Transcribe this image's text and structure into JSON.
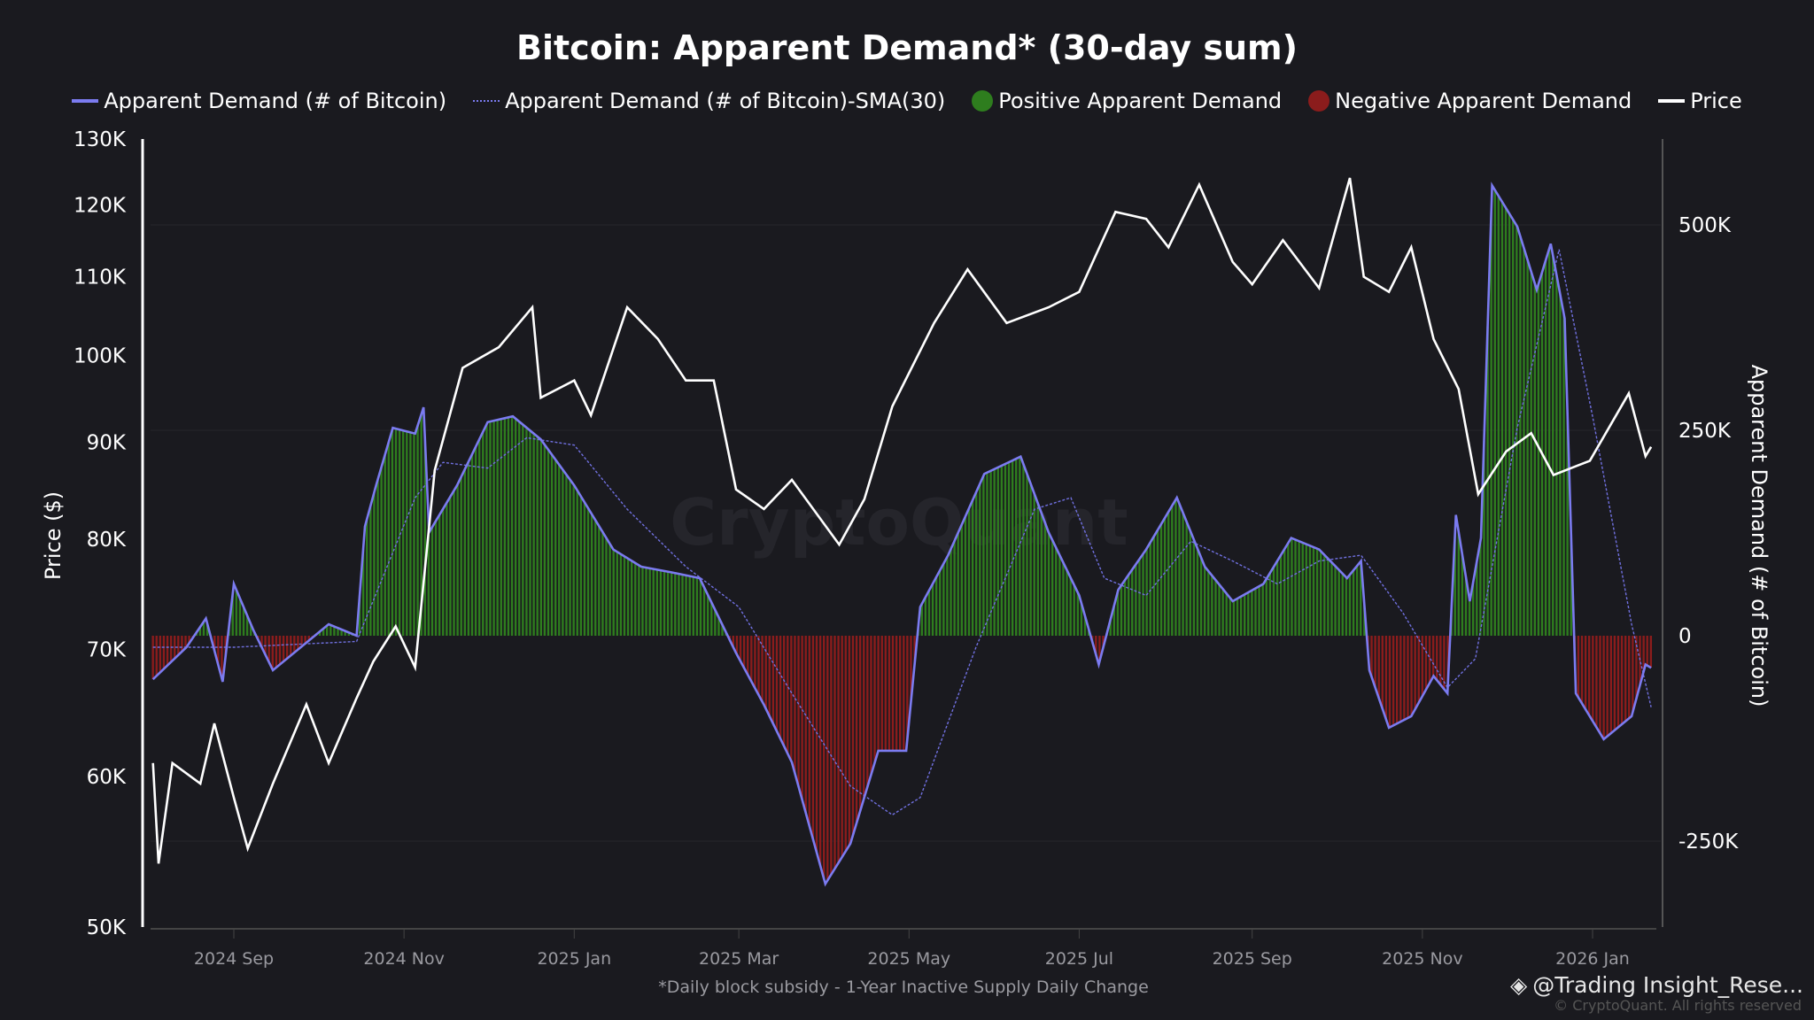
{
  "chart_data": {
    "type": "line",
    "title": "Bitcoin: Apparent Demand* (30-day sum)",
    "footnote": "*Daily block subsidy - 1-Year Inactive Supply Daily Change",
    "watermark": "CryptoQuant",
    "credit": "© CryptoQuant. All rights reserved",
    "handle": "@Trading Insight_Rese...",
    "legend": [
      "Apparent Demand (# of Bitcoin)",
      "Apparent Demand (# of Bitcoin)-SMA(30)",
      "Positive Apparent Demand",
      "Negative Apparent Demand",
      "Price"
    ],
    "legend_placement": "top-center",
    "colors": {
      "demand": "#7b7bf0",
      "sma": "#7070e0",
      "positive": "#2e7d1e",
      "negative": "#8b1c1c",
      "price": "#ffffff",
      "background": "#1a1a1f"
    },
    "ylabel_left": "Price ($)",
    "ylabel_right": "Apparent Demand (# of Bitcoin)",
    "y_left_scale": "log",
    "y_left_range": [
      50000,
      130000
    ],
    "y_left_ticks": [
      "130K",
      "120K",
      "110K",
      "100K",
      "90K",
      "80K",
      "70K",
      "60K",
      "50K"
    ],
    "y_left_tick_values": [
      130000,
      120000,
      110000,
      100000,
      90000,
      80000,
      70000,
      60000,
      50000
    ],
    "y_right_range": [
      -353000,
      605000
    ],
    "y_right_ticks": [
      "500K",
      "250K",
      "0",
      "-250K"
    ],
    "y_right_tick_values": [
      500000,
      250000,
      0,
      -250000
    ],
    "x_range": [
      "2024-08-03",
      "2026-01-22"
    ],
    "x_ticks": [
      "2024 Sep",
      "2024 Nov",
      "2025 Jan",
      "2025 Mar",
      "2025 May",
      "2025 Jul",
      "2025 Sep",
      "2025 Nov",
      "2026 Jan"
    ],
    "x_tick_dates": [
      "2024-09-01",
      "2024-11-01",
      "2025-01-01",
      "2025-03-01",
      "2025-05-01",
      "2025-07-01",
      "2025-09-01",
      "2025-11-01",
      "2026-01-01"
    ],
    "price": [
      [
        "2024-08-03",
        61000
      ],
      [
        "2024-08-05",
        54000
      ],
      [
        "2024-08-10",
        61000
      ],
      [
        "2024-08-20",
        59500
      ],
      [
        "2024-08-25",
        64000
      ],
      [
        "2024-09-01",
        58500
      ],
      [
        "2024-09-06",
        55000
      ],
      [
        "2024-09-15",
        59500
      ],
      [
        "2024-09-27",
        65500
      ],
      [
        "2024-10-05",
        61000
      ],
      [
        "2024-10-15",
        66000
      ],
      [
        "2024-10-21",
        69000
      ],
      [
        "2024-10-29",
        72000
      ],
      [
        "2024-11-05",
        68500
      ],
      [
        "2024-11-12",
        87000
      ],
      [
        "2024-11-22",
        98500
      ],
      [
        "2024-12-05",
        101000
      ],
      [
        "2024-12-17",
        106000
      ],
      [
        "2024-12-20",
        95000
      ],
      [
        "2025-01-01",
        97000
      ],
      [
        "2025-01-07",
        93000
      ],
      [
        "2025-01-20",
        106000
      ],
      [
        "2025-01-31",
        102000
      ],
      [
        "2025-02-10",
        97000
      ],
      [
        "2025-02-20",
        97000
      ],
      [
        "2025-02-28",
        85000
      ],
      [
        "2025-03-10",
        83000
      ],
      [
        "2025-03-20",
        86000
      ],
      [
        "2025-04-06",
        79500
      ],
      [
        "2025-04-15",
        84000
      ],
      [
        "2025-04-25",
        94000
      ],
      [
        "2025-05-10",
        104000
      ],
      [
        "2025-05-22",
        111000
      ],
      [
        "2025-06-05",
        104000
      ],
      [
        "2025-06-20",
        106000
      ],
      [
        "2025-07-01",
        108000
      ],
      [
        "2025-07-14",
        119000
      ],
      [
        "2025-07-25",
        118000
      ],
      [
        "2025-08-02",
        114000
      ],
      [
        "2025-08-13",
        123000
      ],
      [
        "2025-08-25",
        112000
      ],
      [
        "2025-09-01",
        109000
      ],
      [
        "2025-09-12",
        115000
      ],
      [
        "2025-09-25",
        108500
      ],
      [
        "2025-10-06",
        124000
      ],
      [
        "2025-10-11",
        110000
      ],
      [
        "2025-10-20",
        108000
      ],
      [
        "2025-10-28",
        114000
      ],
      [
        "2025-11-05",
        102000
      ],
      [
        "2025-11-14",
        96000
      ],
      [
        "2025-11-21",
        84500
      ],
      [
        "2025-12-01",
        89000
      ],
      [
        "2025-12-10",
        91000
      ],
      [
        "2025-12-18",
        86500
      ],
      [
        "2025-12-31",
        88000
      ],
      [
        "2026-01-14",
        95500
      ],
      [
        "2026-01-20",
        88500
      ],
      [
        "2026-01-22",
        89500
      ]
    ],
    "demand": [
      [
        "2024-08-03",
        -53000
      ],
      [
        "2024-08-15",
        -14000
      ],
      [
        "2024-08-22",
        21000
      ],
      [
        "2024-08-28",
        -56000
      ],
      [
        "2024-09-01",
        63000
      ],
      [
        "2024-09-08",
        7000
      ],
      [
        "2024-09-15",
        -42000
      ],
      [
        "2024-09-25",
        -14000
      ],
      [
        "2024-10-05",
        14000
      ],
      [
        "2024-10-15",
        0
      ],
      [
        "2024-10-18",
        133000
      ],
      [
        "2024-10-22",
        183000
      ],
      [
        "2024-10-28",
        253000
      ],
      [
        "2024-11-05",
        246000
      ],
      [
        "2024-11-08",
        278000
      ],
      [
        "2024-11-10",
        126000
      ],
      [
        "2024-11-20",
        183000
      ],
      [
        "2024-12-01",
        260000
      ],
      [
        "2024-12-10",
        267000
      ],
      [
        "2024-12-20",
        239000
      ],
      [
        "2025-01-01",
        183000
      ],
      [
        "2025-01-15",
        105000
      ],
      [
        "2025-01-25",
        84000
      ],
      [
        "2025-02-05",
        77000
      ],
      [
        "2025-02-15",
        70000
      ],
      [
        "2025-02-28",
        -21000
      ],
      [
        "2025-03-10",
        -84000
      ],
      [
        "2025-03-20",
        -154000
      ],
      [
        "2025-04-01",
        -302000
      ],
      [
        "2025-04-10",
        -253000
      ],
      [
        "2025-04-20",
        -140000
      ],
      [
        "2025-04-30",
        -140000
      ],
      [
        "2025-05-05",
        35000
      ],
      [
        "2025-05-15",
        98000
      ],
      [
        "2025-05-28",
        197000
      ],
      [
        "2025-06-10",
        218000
      ],
      [
        "2025-06-20",
        126000
      ],
      [
        "2025-07-01",
        49000
      ],
      [
        "2025-07-08",
        -35000
      ],
      [
        "2025-07-15",
        56000
      ],
      [
        "2025-07-25",
        105000
      ],
      [
        "2025-08-05",
        168000
      ],
      [
        "2025-08-15",
        84000
      ],
      [
        "2025-08-25",
        42000
      ],
      [
        "2025-09-05",
        63000
      ],
      [
        "2025-09-15",
        119000
      ],
      [
        "2025-09-25",
        105000
      ],
      [
        "2025-10-05",
        70000
      ],
      [
        "2025-10-10",
        91000
      ],
      [
        "2025-10-13",
        -42000
      ],
      [
        "2025-10-20",
        -112000
      ],
      [
        "2025-10-28",
        -98000
      ],
      [
        "2025-11-05",
        -49000
      ],
      [
        "2025-11-10",
        -70000
      ],
      [
        "2025-11-13",
        147000
      ],
      [
        "2025-11-18",
        42000
      ],
      [
        "2025-11-22",
        119000
      ],
      [
        "2025-11-26",
        548000
      ],
      [
        "2025-12-05",
        498000
      ],
      [
        "2025-12-12",
        421000
      ],
      [
        "2025-12-17",
        477000
      ],
      [
        "2025-12-22",
        386000
      ],
      [
        "2025-12-26",
        -70000
      ],
      [
        "2026-01-05",
        -126000
      ],
      [
        "2026-01-15",
        -98000
      ],
      [
        "2026-01-20",
        -35000
      ],
      [
        "2026-01-22",
        -39000
      ]
    ],
    "sma": [
      [
        "2024-08-03",
        -14000
      ],
      [
        "2024-09-01",
        -14000
      ],
      [
        "2024-10-15",
        -7000
      ],
      [
        "2024-11-05",
        168000
      ],
      [
        "2024-11-15",
        211000
      ],
      [
        "2024-12-01",
        204000
      ],
      [
        "2024-12-15",
        241000
      ],
      [
        "2025-01-01",
        232000
      ],
      [
        "2025-01-20",
        154000
      ],
      [
        "2025-02-10",
        84000
      ],
      [
        "2025-03-01",
        35000
      ],
      [
        "2025-03-20",
        -70000
      ],
      [
        "2025-04-10",
        -183000
      ],
      [
        "2025-04-25",
        -218000
      ],
      [
        "2025-05-05",
        -197000
      ],
      [
        "2025-05-25",
        -14000
      ],
      [
        "2025-06-15",
        154000
      ],
      [
        "2025-06-28",
        168000
      ],
      [
        "2025-07-10",
        70000
      ],
      [
        "2025-07-25",
        49000
      ],
      [
        "2025-08-10",
        115000
      ],
      [
        "2025-08-25",
        91000
      ],
      [
        "2025-09-10",
        63000
      ],
      [
        "2025-09-25",
        91000
      ],
      [
        "2025-10-10",
        98000
      ],
      [
        "2025-10-25",
        28000
      ],
      [
        "2025-11-10",
        -63000
      ],
      [
        "2025-11-20",
        -28000
      ],
      [
        "2025-12-05",
        253000
      ],
      [
        "2025-12-20",
        470000
      ],
      [
        "2026-01-01",
        267000
      ],
      [
        "2026-01-15",
        14000
      ],
      [
        "2026-01-22",
        -87000
      ]
    ]
  }
}
